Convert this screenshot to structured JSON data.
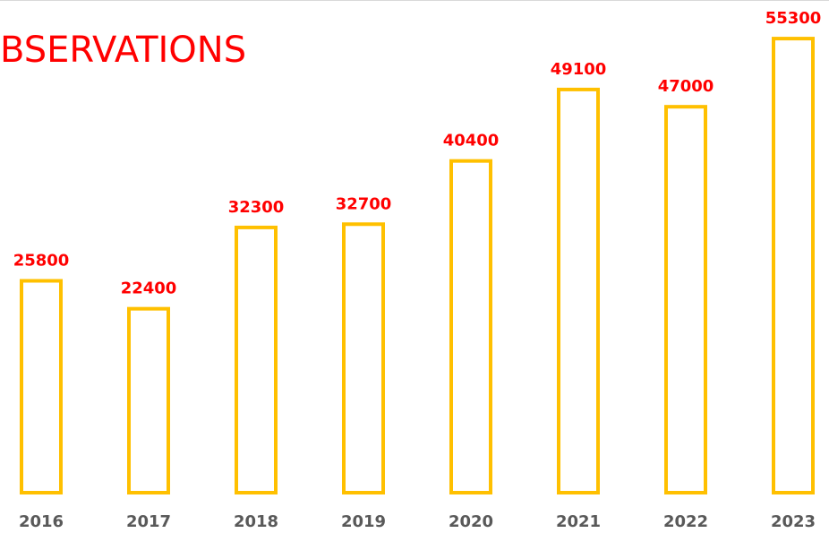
{
  "chart_data": {
    "type": "bar",
    "title": "BSERVATIONS",
    "categories": [
      "2016",
      "2017",
      "2018",
      "2019",
      "2020",
      "2021",
      "2022",
      "2023"
    ],
    "values": [
      25800,
      22400,
      32300,
      32700,
      40400,
      49100,
      47000,
      55300
    ],
    "color": "#ffc000",
    "ylim": [
      0,
      60000
    ]
  }
}
